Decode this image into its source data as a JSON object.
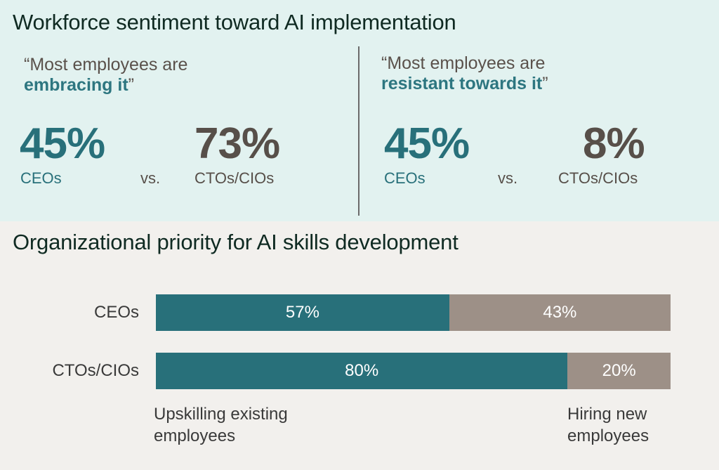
{
  "section1": {
    "title": "Workforce sentiment toward AI implementation",
    "left": {
      "quote_prefix": "“Most employees are",
      "quote_emphasis": "embracing it",
      "quote_suffix": "”",
      "ceo_value": "45%",
      "ceo_label": "CEOs",
      "vs": "vs.",
      "cto_value": "73%",
      "cto_label": "CTOs/CIOs"
    },
    "right": {
      "quote_prefix": "“Most employees are",
      "quote_emphasis": "resistant towards it",
      "quote_suffix": "”",
      "ceo_value": "45%",
      "ceo_label": "CEOs",
      "vs": "vs.",
      "cto_value": "8%",
      "cto_label": "CTOs/CIOs"
    }
  },
  "colors": {
    "teal": "#28707a",
    "taupe": "#9d9087",
    "top_bg": "#e2f2f0",
    "bottom_bg": "#f2f0ed"
  },
  "chart_data": {
    "type": "bar",
    "orientation": "horizontal",
    "stacked": true,
    "title": "Organizational priority for AI skills development",
    "categories": [
      "CEOs",
      "CTOs/CIOs"
    ],
    "series": [
      {
        "name": "Upskilling existing employees",
        "values": [
          57,
          80
        ],
        "labels": [
          "57%",
          "80%"
        ],
        "color": "#28707a"
      },
      {
        "name": "Hiring new employees",
        "values": [
          43,
          20
        ],
        "labels": [
          "43%",
          "20%"
        ],
        "color": "#9d9087"
      }
    ],
    "xlim": [
      0,
      100
    ],
    "unit": "%",
    "legend": {
      "left_label_line1": "Upskilling existing",
      "left_label_line2": "employees",
      "right_label_line1": "Hiring new",
      "right_label_line2": "employees"
    }
  }
}
